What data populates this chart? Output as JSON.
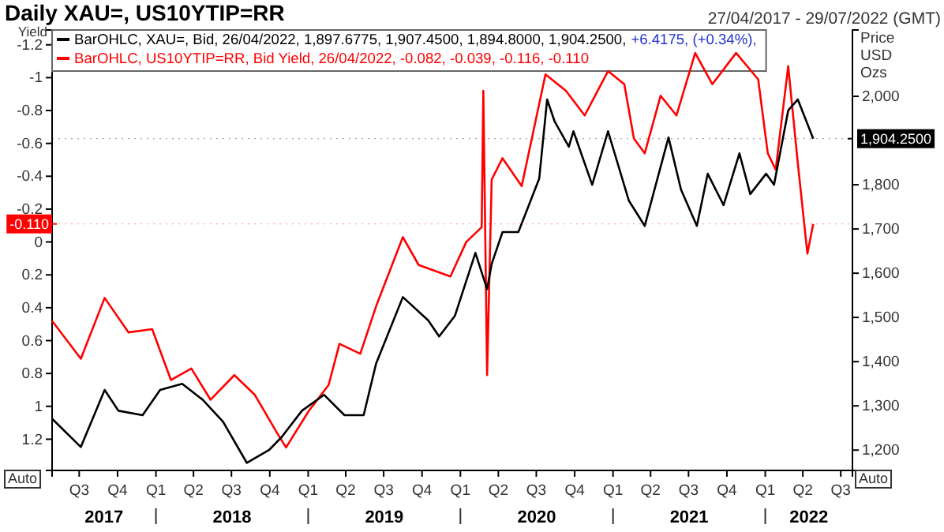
{
  "chart_data": {
    "type": "line",
    "title": "Daily XAU=, US10YTIP=RR",
    "subtitle": "27/04/2017 - 29/07/2022 (GMT)",
    "ylabel": "Yield",
    "y2label": "Price USD Ozs",
    "legend": "top left",
    "series": [
      {
        "name": "BarOHLC, US10YTIP=RR, Bid Yield, 26/04/2022, -0.082, -0.039, -0.116, -0.110",
        "color": "#ff0000",
        "axis": "y",
        "x": [
          "2017-04-27",
          "2017-07-05",
          "2017-08-31",
          "2017-10-27",
          "2017-12-23",
          "2018-02-06",
          "2018-03-27",
          "2018-05-12",
          "2018-07-08",
          "2018-08-26",
          "2018-10-18",
          "2018-11-09",
          "2019-01-02",
          "2019-02-19",
          "2019-03-17",
          "2019-05-06",
          "2019-06-13",
          "2019-08-16",
          "2019-09-23",
          "2019-12-08",
          "2020-01-15",
          "2020-02-21",
          "2020-02-25",
          "2020-03-05",
          "2020-03-16",
          "2020-04-11",
          "2020-05-27",
          "2020-07-23",
          "2020-09-10",
          "2020-10-25",
          "2020-12-20",
          "2021-01-28",
          "2021-02-20",
          "2021-03-18",
          "2021-04-25",
          "2021-06-02",
          "2021-07-17",
          "2021-08-27",
          "2021-10-23",
          "2021-12-15",
          "2022-01-07",
          "2022-01-26",
          "2022-02-25",
          "2022-03-20",
          "2022-04-12",
          "2022-04-26"
        ],
        "values": [
          0.48,
          0.71,
          0.34,
          0.55,
          0.53,
          0.84,
          0.77,
          0.96,
          0.81,
          0.93,
          1.16,
          1.25,
          1.03,
          0.87,
          0.62,
          0.68,
          0.39,
          -0.03,
          0.14,
          0.21,
          0.0,
          -0.09,
          -0.92,
          0.81,
          -0.38,
          -0.51,
          -0.34,
          -1.02,
          -0.92,
          -0.77,
          -1.04,
          -0.96,
          -0.63,
          -0.54,
          -0.89,
          -0.77,
          -1.15,
          -0.96,
          -1.15,
          -0.99,
          -0.54,
          -0.44,
          -1.07,
          -0.48,
          0.07,
          -0.11
        ]
      },
      {
        "name": "BarOHLC, XAU=, Bid, 26/04/2022, 1,897.6775, 1,907.4500, 1,894.8000, 1,904.2500,",
        "color": "#000000",
        "axis": "y2",
        "x": [
          "2017-04-27",
          "2017-07-05",
          "2017-08-31",
          "2017-10-03",
          "2017-11-30",
          "2018-01-11",
          "2018-03-05",
          "2018-04-23",
          "2018-06-11",
          "2018-08-07",
          "2018-09-29",
          "2018-10-29",
          "2018-12-17",
          "2019-02-08",
          "2019-03-29",
          "2019-05-14",
          "2019-06-13",
          "2019-08-16",
          "2019-10-16",
          "2019-11-11",
          "2019-12-19",
          "2020-02-06",
          "2020-03-05",
          "2020-03-16",
          "2020-04-11",
          "2020-05-19",
          "2020-07-08",
          "2020-07-27",
          "2020-08-14",
          "2020-09-17",
          "2020-09-28",
          "2020-11-12",
          "2020-12-20",
          "2021-02-08",
          "2021-03-18",
          "2021-05-14",
          "2021-06-13",
          "2021-07-21",
          "2021-08-16",
          "2021-09-23",
          "2021-10-31",
          "2021-11-26",
          "2022-01-03",
          "2022-01-22",
          "2022-02-25",
          "2022-03-20",
          "2022-04-26"
        ],
        "values": [
          1271,
          1207,
          1336,
          1289,
          1279,
          1336,
          1350,
          1314,
          1264,
          1171,
          1200,
          1229,
          1289,
          1325,
          1279,
          1279,
          1396,
          1546,
          1493,
          1457,
          1504,
          1646,
          1564,
          1621,
          1693,
          1693,
          1814,
          1993,
          1943,
          1886,
          1921,
          1800,
          1921,
          1764,
          1707,
          1907,
          1789,
          1707,
          1825,
          1754,
          1871,
          1779,
          1825,
          1800,
          1968,
          1993,
          1904
        ]
      }
    ],
    "xlim": [
      "2017-04-27",
      "2022-07-29"
    ],
    "xticks": [
      {
        "value": "2017-07-01",
        "label": "Q3"
      },
      {
        "value": "2017-10-01",
        "label": "Q4"
      },
      {
        "value": "2018-01-01",
        "label": "Q1"
      },
      {
        "value": "2018-04-01",
        "label": "Q2"
      },
      {
        "value": "2018-07-01",
        "label": "Q3"
      },
      {
        "value": "2018-10-01",
        "label": "Q4"
      },
      {
        "value": "2019-01-01",
        "label": "Q1"
      },
      {
        "value": "2019-04-01",
        "label": "Q2"
      },
      {
        "value": "2019-07-01",
        "label": "Q3"
      },
      {
        "value": "2019-10-01",
        "label": "Q4"
      },
      {
        "value": "2020-01-01",
        "label": "Q1"
      },
      {
        "value": "2020-04-01",
        "label": "Q2"
      },
      {
        "value": "2020-07-01",
        "label": "Q3"
      },
      {
        "value": "2020-10-01",
        "label": "Q4"
      },
      {
        "value": "2021-01-01",
        "label": "Q1"
      },
      {
        "value": "2021-04-01",
        "label": "Q2"
      },
      {
        "value": "2021-07-01",
        "label": "Q3"
      },
      {
        "value": "2021-10-01",
        "label": "Q4"
      },
      {
        "value": "2022-01-01",
        "label": "Q1"
      },
      {
        "value": "2022-04-01",
        "label": "Q2"
      },
      {
        "value": "2022-07-01",
        "label": "Q3"
      }
    ],
    "ylim": [
      1.39,
      -1.29
    ],
    "yticks": [
      -1.2,
      -1,
      -0.8,
      -0.6,
      -0.4,
      -0.2,
      0,
      0.2,
      0.4,
      0.6,
      0.8,
      1,
      1.2
    ],
    "y2lim": [
      1154,
      2150
    ],
    "y2ticks": [
      {
        "value": 1200,
        "label": "1,200"
      },
      {
        "value": 1300,
        "label": "1,300"
      },
      {
        "value": 1400,
        "label": "1,400"
      },
      {
        "value": 1500,
        "label": "1,500"
      },
      {
        "value": 1600,
        "label": "1,600"
      },
      {
        "value": 1700,
        "label": "1,700"
      },
      {
        "value": 1800,
        "label": "1,800"
      },
      {
        "value": 2000,
        "label": "2,000"
      }
    ],
    "ref_lines": [
      {
        "axis": "y",
        "value": -0.11,
        "label": "-0.110",
        "color": "#ff0000"
      },
      {
        "axis": "y2",
        "value": 1904.25,
        "label": "1,904.2500",
        "color": "#000000"
      }
    ],
    "annotations": [
      "+6.4175, (+0.34%),",
      "Auto",
      "Auto",
      "2017",
      "2018",
      "2019",
      "2020",
      "2021",
      "2022"
    ]
  }
}
